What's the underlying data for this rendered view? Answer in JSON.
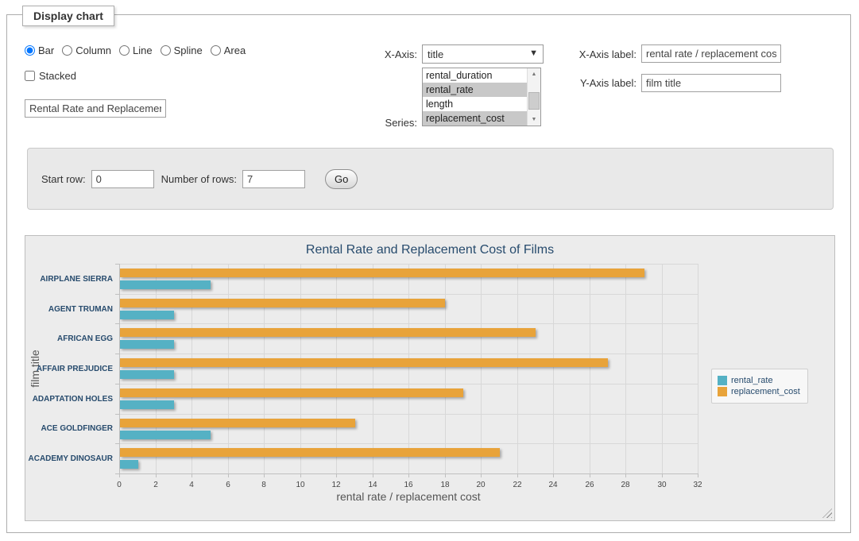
{
  "panel": {
    "title": "Display chart"
  },
  "controls": {
    "chart_types": [
      {
        "label": "Bar",
        "selected": true
      },
      {
        "label": "Column",
        "selected": false
      },
      {
        "label": "Line",
        "selected": false
      },
      {
        "label": "Spline",
        "selected": false
      },
      {
        "label": "Area",
        "selected": false
      }
    ],
    "stacked": {
      "label": "Stacked",
      "checked": false
    },
    "chart_title_input": {
      "value": "Rental Rate and Replacement Cost of Films"
    },
    "x_axis": {
      "label": "X-Axis:",
      "selected_value": "title"
    },
    "series_select": {
      "label": "Series:",
      "options": [
        {
          "label": "rental_duration",
          "selected": false
        },
        {
          "label": "rental_rate",
          "selected": true
        },
        {
          "label": "length",
          "selected": false
        },
        {
          "label": "replacement_cost",
          "selected": true
        }
      ]
    },
    "x_axis_label": {
      "label": "X-Axis label:",
      "value": "rental rate / replacement cost"
    },
    "y_axis_label": {
      "label": "Y-Axis label:",
      "value": "film title"
    }
  },
  "row_controls": {
    "start_row_label": "Start row:",
    "start_row_value": "0",
    "number_of_rows_label": "Number of rows:",
    "number_of_rows_value": "7",
    "go_label": "Go"
  },
  "chart_data": {
    "type": "bar",
    "title": "Rental Rate and Replacement Cost of Films",
    "categories": [
      "AIRPLANE SIERRA",
      "AGENT TRUMAN",
      "AFRICAN EGG",
      "AFFAIR PREJUDICE",
      "ADAPTATION HOLES",
      "ACE GOLDFINGER",
      "ACADEMY DINOSAUR"
    ],
    "series": [
      {
        "name": "rental_rate",
        "color": "#55B1C4",
        "values": [
          4.99,
          2.99,
          2.99,
          2.99,
          2.99,
          4.99,
          0.99
        ]
      },
      {
        "name": "replacement_cost",
        "color": "#E8A33A",
        "values": [
          28.99,
          17.99,
          22.99,
          26.99,
          18.99,
          12.99,
          20.99
        ]
      }
    ],
    "xlabel": "rental rate / replacement cost",
    "ylabel": "film title",
    "xlim": [
      0,
      32
    ],
    "x_ticks": [
      0,
      2,
      4,
      6,
      8,
      10,
      12,
      14,
      16,
      18,
      20,
      22,
      24,
      26,
      28,
      30,
      32
    ],
    "grid": true,
    "legend_position": "right",
    "plot_background": "#ECECEC"
  }
}
